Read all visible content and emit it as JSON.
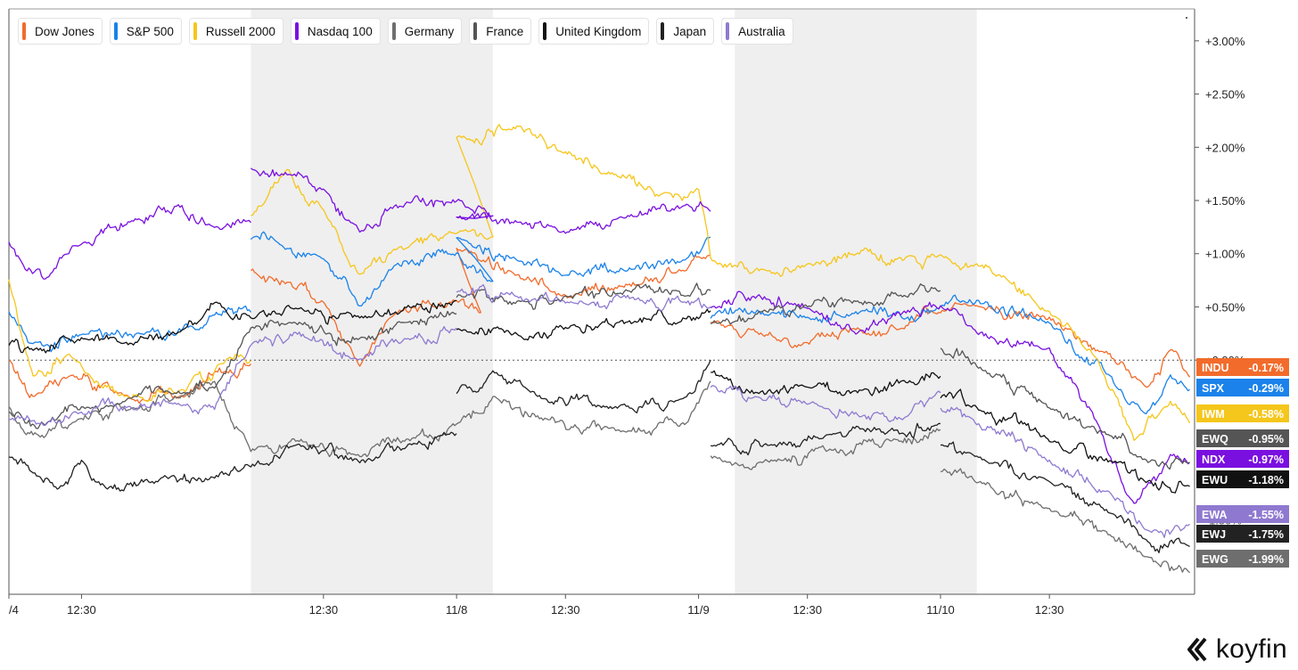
{
  "brand": {
    "name": "koyfin",
    "logo_icon": "koyfin-chevron-icon"
  },
  "legend": [
    {
      "label": "Dow Jones",
      "color": "#f26b2b"
    },
    {
      "label": "S&P 500",
      "color": "#1a82ea"
    },
    {
      "label": "Russell 2000",
      "color": "#f5c61b"
    },
    {
      "label": "Nasdaq 100",
      "color": "#7a10e0"
    },
    {
      "label": "Germany",
      "color": "#6e6e6e"
    },
    {
      "label": "France",
      "color": "#555555"
    },
    {
      "label": "United Kingdom",
      "color": "#111111"
    },
    {
      "label": "Japan",
      "color": "#222222"
    },
    {
      "label": "Australia",
      "color": "#8f79d0"
    }
  ],
  "chart_data": {
    "type": "line",
    "ylim": [
      -2.2,
      3.3
    ],
    "yticks": [
      3.0,
      2.5,
      2.0,
      1.5,
      1.0,
      0.5,
      0.0
    ],
    "ytick_labels": [
      "+3.00%",
      "+2.50%",
      "+2.00%",
      "+1.50%",
      "+1.00%",
      "+0.50%",
      "+0.00%"
    ],
    "ytick_labels_partial": [
      {
        "label": "0.50%",
        "value": -0.5
      },
      {
        "label": "1.50%",
        "value": -1.5
      }
    ],
    "baseline": 0.0,
    "x_range": [
      0,
      4.9
    ],
    "xticks": [
      {
        "label": "/4",
        "x": 0.0
      },
      {
        "label": "12:30",
        "x": 0.3
      },
      {
        "label": "12:30",
        "x": 1.3
      },
      {
        "label": "11/8",
        "x": 1.85
      },
      {
        "label": "12:30",
        "x": 2.3
      },
      {
        "label": "11/9",
        "x": 2.85
      },
      {
        "label": "12:30",
        "x": 3.3
      },
      {
        "label": "11/10",
        "x": 3.85
      },
      {
        "label": "12:30",
        "x": 4.3
      }
    ],
    "shaded_ranges": [
      [
        1.0,
        2.0
      ],
      [
        3.0,
        4.0
      ]
    ],
    "series": [
      {
        "name": "Dow Jones",
        "ticker": "INDU",
        "last": "-0.17%",
        "color": "#f26b2b",
        "points": [
          [
            0.0,
            0.0
          ],
          [
            0.1,
            -0.35
          ],
          [
            0.25,
            -0.15
          ],
          [
            0.45,
            -0.3
          ],
          [
            0.7,
            -0.35
          ],
          [
            0.9,
            -0.1
          ],
          [
            1.0,
            -0.05
          ],
          [
            1.0,
            0.85
          ],
          [
            1.15,
            0.72
          ],
          [
            1.3,
            0.55
          ],
          [
            1.45,
            -0.05
          ],
          [
            1.6,
            0.45
          ],
          [
            1.85,
            0.55
          ],
          [
            1.95,
            0.45
          ],
          [
            1.85,
            1.05
          ],
          [
            2.1,
            0.8
          ],
          [
            2.3,
            0.6
          ],
          [
            2.55,
            0.7
          ],
          [
            2.8,
            0.85
          ],
          [
            2.9,
            1.0
          ],
          [
            2.9,
            0.35
          ],
          [
            3.1,
            0.25
          ],
          [
            3.3,
            0.15
          ],
          [
            3.5,
            0.3
          ],
          [
            3.7,
            0.3
          ],
          [
            3.85,
            0.45
          ],
          [
            4.0,
            0.5
          ],
          [
            4.3,
            0.4
          ],
          [
            4.55,
            0.05
          ],
          [
            4.7,
            -0.25
          ],
          [
            4.8,
            0.1
          ],
          [
            4.88,
            -0.17
          ]
        ]
      },
      {
        "name": "S&P 500",
        "ticker": "SPX",
        "last": "-0.29%",
        "color": "#1a82ea",
        "points": [
          [
            0.0,
            0.45
          ],
          [
            0.1,
            0.15
          ],
          [
            0.3,
            0.25
          ],
          [
            0.55,
            0.25
          ],
          [
            0.8,
            0.3
          ],
          [
            0.9,
            0.48
          ],
          [
            1.0,
            0.45
          ],
          [
            1.0,
            1.15
          ],
          [
            1.15,
            1.05
          ],
          [
            1.3,
            0.95
          ],
          [
            1.45,
            0.5
          ],
          [
            1.6,
            0.9
          ],
          [
            1.85,
            1.0
          ],
          [
            2.0,
            0.75
          ],
          [
            1.85,
            1.15
          ],
          [
            2.1,
            0.95
          ],
          [
            2.3,
            0.8
          ],
          [
            2.55,
            0.85
          ],
          [
            2.8,
            0.95
          ],
          [
            2.9,
            1.15
          ],
          [
            2.9,
            0.4
          ],
          [
            3.1,
            0.45
          ],
          [
            3.3,
            0.4
          ],
          [
            3.5,
            0.45
          ],
          [
            3.7,
            0.4
          ],
          [
            3.85,
            0.5
          ],
          [
            4.0,
            0.55
          ],
          [
            4.3,
            0.35
          ],
          [
            4.55,
            -0.15
          ],
          [
            4.7,
            -0.5
          ],
          [
            4.8,
            -0.15
          ],
          [
            4.88,
            -0.29
          ]
        ]
      },
      {
        "name": "Russell 2000",
        "ticker": "IWM",
        "last": "-0.58%",
        "color": "#f5c61b",
        "points": [
          [
            0.0,
            0.75
          ],
          [
            0.1,
            -0.15
          ],
          [
            0.25,
            0.05
          ],
          [
            0.5,
            -0.35
          ],
          [
            0.7,
            -0.3
          ],
          [
            0.9,
            0.0
          ],
          [
            1.0,
            0.0
          ],
          [
            1.0,
            1.35
          ],
          [
            1.15,
            1.8
          ],
          [
            1.3,
            1.4
          ],
          [
            1.45,
            0.8
          ],
          [
            1.6,
            1.05
          ],
          [
            1.85,
            1.2
          ],
          [
            2.0,
            1.15
          ],
          [
            1.85,
            2.1
          ],
          [
            2.1,
            2.2
          ],
          [
            2.3,
            1.95
          ],
          [
            2.5,
            1.75
          ],
          [
            2.7,
            1.55
          ],
          [
            2.85,
            1.6
          ],
          [
            2.9,
            0.95
          ],
          [
            3.1,
            0.85
          ],
          [
            3.3,
            0.9
          ],
          [
            3.5,
            1.0
          ],
          [
            3.7,
            0.95
          ],
          [
            3.85,
            1.0
          ],
          [
            4.0,
            0.9
          ],
          [
            4.3,
            0.45
          ],
          [
            4.5,
            0.0
          ],
          [
            4.65,
            -0.75
          ],
          [
            4.8,
            -0.4
          ],
          [
            4.88,
            -0.58
          ]
        ]
      },
      {
        "name": "Nasdaq 100",
        "ticker": "NDX",
        "last": "-0.97%",
        "color": "#7a10e0",
        "points": [
          [
            0.0,
            1.1
          ],
          [
            0.15,
            0.75
          ],
          [
            0.3,
            1.1
          ],
          [
            0.5,
            1.3
          ],
          [
            0.7,
            1.45
          ],
          [
            0.85,
            1.25
          ],
          [
            1.0,
            1.3
          ],
          [
            1.0,
            1.8
          ],
          [
            1.15,
            1.75
          ],
          [
            1.3,
            1.6
          ],
          [
            1.45,
            1.2
          ],
          [
            1.6,
            1.45
          ],
          [
            1.85,
            1.5
          ],
          [
            2.0,
            1.35
          ],
          [
            1.85,
            1.35
          ],
          [
            2.1,
            1.3
          ],
          [
            2.3,
            1.2
          ],
          [
            2.55,
            1.35
          ],
          [
            2.8,
            1.45
          ],
          [
            2.9,
            1.4
          ],
          [
            2.9,
            0.5
          ],
          [
            3.1,
            0.6
          ],
          [
            3.3,
            0.5
          ],
          [
            3.5,
            0.25
          ],
          [
            3.7,
            0.45
          ],
          [
            3.85,
            0.5
          ],
          [
            4.0,
            0.25
          ],
          [
            4.3,
            0.1
          ],
          [
            4.5,
            -0.6
          ],
          [
            4.65,
            -1.35
          ],
          [
            4.8,
            -0.9
          ],
          [
            4.88,
            -0.97
          ]
        ]
      },
      {
        "name": "Germany",
        "ticker": "EWG",
        "last": "-1.99%",
        "color": "#6e6e6e",
        "points": [
          [
            0.0,
            -0.45
          ],
          [
            0.1,
            -0.7
          ],
          [
            0.3,
            -0.55
          ],
          [
            0.5,
            -0.45
          ],
          [
            0.7,
            -0.35
          ],
          [
            0.85,
            -0.2
          ],
          [
            1.0,
            -0.85
          ],
          [
            1.2,
            -0.75
          ],
          [
            1.45,
            -0.9
          ],
          [
            1.65,
            -0.75
          ],
          [
            1.85,
            -0.6
          ],
          [
            2.0,
            -0.35
          ],
          [
            2.2,
            -0.55
          ],
          [
            2.5,
            -0.65
          ],
          [
            2.8,
            -0.6
          ],
          [
            2.9,
            -0.2
          ],
          [
            2.9,
            -0.9
          ],
          [
            3.15,
            -0.95
          ],
          [
            3.4,
            -0.85
          ],
          [
            3.65,
            -0.75
          ],
          [
            3.85,
            -0.65
          ],
          [
            3.85,
            -1.05
          ],
          [
            4.0,
            -1.15
          ],
          [
            4.3,
            -1.4
          ],
          [
            4.55,
            -1.65
          ],
          [
            4.7,
            -1.85
          ],
          [
            4.88,
            -1.99
          ]
        ]
      },
      {
        "name": "France",
        "ticker": "EWQ",
        "last": "-0.95%",
        "color": "#555555",
        "points": [
          [
            0.0,
            -0.5
          ],
          [
            0.15,
            -0.6
          ],
          [
            0.3,
            -0.45
          ],
          [
            0.5,
            -0.35
          ],
          [
            0.7,
            -0.3
          ],
          [
            0.85,
            -0.25
          ],
          [
            1.0,
            0.3
          ],
          [
            1.2,
            0.35
          ],
          [
            1.45,
            0.2
          ],
          [
            1.65,
            0.35
          ],
          [
            1.85,
            0.45
          ],
          [
            1.85,
            0.6
          ],
          [
            2.1,
            0.55
          ],
          [
            2.3,
            0.6
          ],
          [
            2.55,
            0.65
          ],
          [
            2.8,
            0.6
          ],
          [
            2.9,
            0.65
          ],
          [
            2.9,
            0.35
          ],
          [
            3.1,
            0.45
          ],
          [
            3.3,
            0.5
          ],
          [
            3.5,
            0.55
          ],
          [
            3.7,
            0.6
          ],
          [
            3.85,
            0.65
          ],
          [
            3.85,
            0.1
          ],
          [
            4.0,
            -0.05
          ],
          [
            4.3,
            -0.45
          ],
          [
            4.55,
            -0.7
          ],
          [
            4.7,
            -0.95
          ],
          [
            4.88,
            -0.95
          ]
        ]
      },
      {
        "name": "United Kingdom",
        "ticker": "EWU",
        "last": "-1.18%",
        "color": "#111111",
        "points": [
          [
            0.0,
            0.15
          ],
          [
            0.1,
            0.1
          ],
          [
            0.3,
            0.2
          ],
          [
            0.5,
            0.15
          ],
          [
            0.7,
            0.25
          ],
          [
            0.85,
            0.55
          ],
          [
            1.0,
            0.4
          ],
          [
            1.2,
            0.5
          ],
          [
            1.45,
            0.4
          ],
          [
            1.65,
            0.5
          ],
          [
            1.85,
            0.55
          ],
          [
            1.85,
            0.3
          ],
          [
            2.1,
            0.25
          ],
          [
            2.3,
            0.3
          ],
          [
            2.55,
            0.35
          ],
          [
            2.8,
            0.4
          ],
          [
            2.9,
            0.45
          ],
          [
            2.9,
            -0.1
          ],
          [
            3.1,
            -0.3
          ],
          [
            3.3,
            -0.25
          ],
          [
            3.5,
            -0.3
          ],
          [
            3.7,
            -0.2
          ],
          [
            3.85,
            -0.15
          ],
          [
            3.85,
            -0.35
          ],
          [
            4.0,
            -0.45
          ],
          [
            4.3,
            -0.75
          ],
          [
            4.55,
            -0.95
          ],
          [
            4.7,
            -1.15
          ],
          [
            4.88,
            -1.18
          ]
        ]
      },
      {
        "name": "Japan",
        "ticker": "EWJ",
        "last": "-1.75%",
        "color": "#222222",
        "points": [
          [
            0.0,
            -0.9
          ],
          [
            0.1,
            -1.05
          ],
          [
            0.2,
            -1.2
          ],
          [
            0.3,
            -0.95
          ],
          [
            0.4,
            -1.2
          ],
          [
            0.6,
            -1.15
          ],
          [
            0.85,
            -1.1
          ],
          [
            1.0,
            -1.0
          ],
          [
            1.2,
            -0.8
          ],
          [
            1.45,
            -0.95
          ],
          [
            1.65,
            -0.8
          ],
          [
            1.85,
            -0.7
          ],
          [
            1.85,
            -0.3
          ],
          [
            2.0,
            -0.1
          ],
          [
            2.2,
            -0.35
          ],
          [
            2.5,
            -0.45
          ],
          [
            2.8,
            -0.35
          ],
          [
            2.9,
            0.0
          ],
          [
            2.9,
            -0.8
          ],
          [
            3.15,
            -0.8
          ],
          [
            3.4,
            -0.7
          ],
          [
            3.65,
            -0.65
          ],
          [
            3.85,
            -0.6
          ],
          [
            3.85,
            -0.8
          ],
          [
            4.0,
            -0.9
          ],
          [
            4.3,
            -1.15
          ],
          [
            4.55,
            -1.45
          ],
          [
            4.7,
            -1.7
          ],
          [
            4.88,
            -1.75
          ]
        ]
      },
      {
        "name": "Australia",
        "ticker": "EWA",
        "last": "-1.55%",
        "color": "#8f79d0",
        "points": [
          [
            0.0,
            -0.55
          ],
          [
            0.15,
            -0.6
          ],
          [
            0.3,
            -0.5
          ],
          [
            0.5,
            -0.45
          ],
          [
            0.7,
            -0.4
          ],
          [
            0.85,
            -0.45
          ],
          [
            1.0,
            0.15
          ],
          [
            1.2,
            0.25
          ],
          [
            1.45,
            0.0
          ],
          [
            1.65,
            0.2
          ],
          [
            1.85,
            0.3
          ],
          [
            1.85,
            0.65
          ],
          [
            2.1,
            0.6
          ],
          [
            2.3,
            0.55
          ],
          [
            2.55,
            0.6
          ],
          [
            2.8,
            0.55
          ],
          [
            2.9,
            0.5
          ],
          [
            2.9,
            -0.25
          ],
          [
            3.1,
            -0.35
          ],
          [
            3.3,
            -0.4
          ],
          [
            3.5,
            -0.5
          ],
          [
            3.7,
            -0.55
          ],
          [
            3.85,
            -0.3
          ],
          [
            3.85,
            -0.45
          ],
          [
            4.0,
            -0.6
          ],
          [
            4.3,
            -0.95
          ],
          [
            4.55,
            -1.25
          ],
          [
            4.7,
            -1.6
          ],
          [
            4.88,
            -1.55
          ]
        ]
      }
    ],
    "end_labels_order": [
      "INDU",
      "SPX",
      "IWM",
      "EWQ",
      "NDX",
      "EWU",
      "EWA",
      "EWJ",
      "EWG"
    ]
  }
}
